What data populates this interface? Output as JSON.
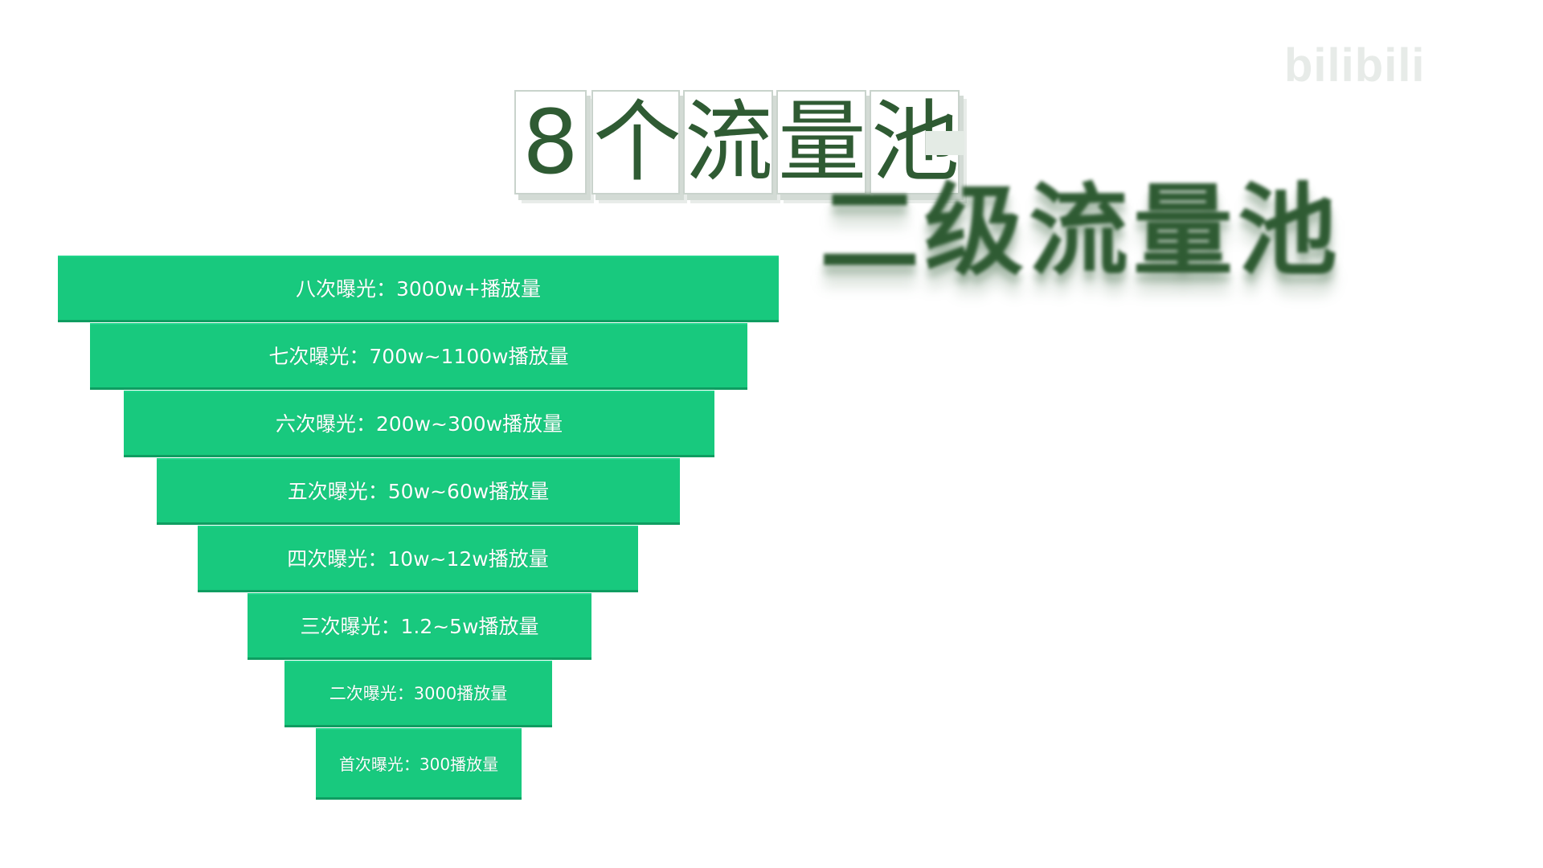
{
  "watermark": "bilibili",
  "title": {
    "tiles": [
      "8",
      "个",
      "流",
      "量",
      "池"
    ]
  },
  "subtitle": "二级流量池",
  "funnel": {
    "tiers": [
      {
        "label": "八次曝光：3000w+播放量"
      },
      {
        "label": "七次曝光：700w~1100w播放量"
      },
      {
        "label": "六次曝光：200w~300w播放量"
      },
      {
        "label": "五次曝光：50w~60w播放量"
      },
      {
        "label": "四次曝光：10w~12w播放量"
      },
      {
        "label": "三次曝光：1.2~5w播放量"
      },
      {
        "label": "二次曝光：3000播放量"
      },
      {
        "label": "首次曝光：300播放量"
      }
    ]
  },
  "colors": {
    "tier_fill": "#18c97e",
    "title_text": "#2f5b33"
  }
}
